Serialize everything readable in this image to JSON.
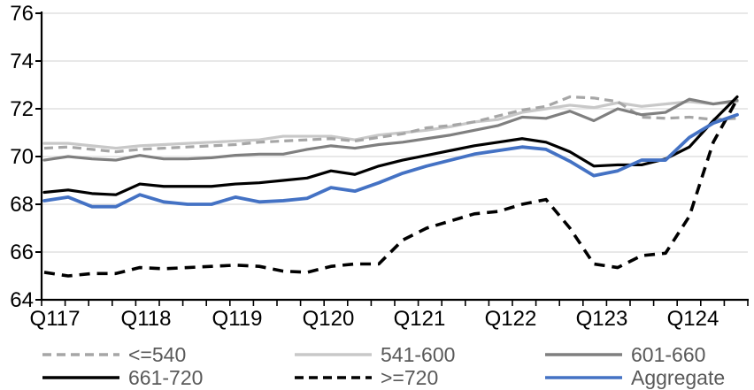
{
  "chart_data": {
    "type": "line",
    "title": "",
    "xlabel": "",
    "ylabel": "",
    "grid": true,
    "legend_position": "bottom",
    "background_color": "#FFFFFF",
    "gridline_color": "#D9D9D9",
    "axis_color": "#000000",
    "axis_label_color": "#000000",
    "legend_text_color": "#595959",
    "y_axis": {
      "min": 64,
      "max": 76,
      "step": 2,
      "tick_labels": [
        "64",
        "66",
        "68",
        "70",
        "72",
        "74",
        "76"
      ]
    },
    "x_axis": {
      "tick_labels": [
        "Q117",
        "Q118",
        "Q119",
        "Q120",
        "Q121",
        "Q122",
        "Q123",
        "Q124"
      ],
      "categories": [
        "Q117",
        "Q217",
        "Q317",
        "Q417",
        "Q118",
        "Q218",
        "Q318",
        "Q418",
        "Q119",
        "Q219",
        "Q319",
        "Q419",
        "Q120",
        "Q220",
        "Q320",
        "Q420",
        "Q121",
        "Q221",
        "Q321",
        "Q421",
        "Q122",
        "Q222",
        "Q322",
        "Q422",
        "Q123",
        "Q223",
        "Q323",
        "Q423",
        "Q124",
        "Q224"
      ]
    },
    "series": [
      {
        "key": "le-540",
        "name": "<=540",
        "color": "#A6A6A6",
        "dash": "dashed",
        "width": 3.2,
        "values": [
          70.35,
          70.4,
          70.3,
          70.2,
          70.3,
          70.35,
          70.4,
          70.45,
          70.5,
          70.6,
          70.65,
          70.7,
          70.75,
          70.65,
          70.8,
          70.95,
          71.2,
          71.3,
          71.45,
          71.7,
          71.95,
          72.1,
          72.5,
          72.45,
          72.3,
          71.65,
          71.6,
          71.65,
          71.55,
          71.6
        ]
      },
      {
        "key": "541-600",
        "name": "541-600",
        "color": "#C8C8C8",
        "dash": "solid",
        "width": 3.2,
        "values": [
          70.55,
          70.55,
          70.45,
          70.35,
          70.45,
          70.5,
          70.55,
          70.6,
          70.65,
          70.7,
          70.85,
          70.85,
          70.85,
          70.7,
          70.9,
          71.0,
          71.1,
          71.25,
          71.45,
          71.55,
          71.85,
          72.0,
          72.15,
          72.05,
          72.25,
          72.1,
          72.2,
          72.3,
          72.2,
          72.3
        ]
      },
      {
        "key": "601-660",
        "name": "601-660",
        "color": "#7F7F7F",
        "dash": "solid",
        "width": 3.2,
        "values": [
          69.85,
          70.0,
          69.9,
          69.85,
          70.05,
          69.9,
          69.9,
          69.95,
          70.05,
          70.1,
          70.1,
          70.3,
          70.45,
          70.35,
          70.5,
          70.6,
          70.75,
          70.9,
          71.1,
          71.3,
          71.65,
          71.6,
          71.9,
          71.5,
          72.0,
          71.75,
          71.85,
          72.4,
          72.2,
          72.35
        ]
      },
      {
        "key": "661-720",
        "name": "661-720",
        "color": "#000000",
        "dash": "solid",
        "width": 3.2,
        "values": [
          68.5,
          68.6,
          68.45,
          68.4,
          68.85,
          68.75,
          68.75,
          68.75,
          68.85,
          68.9,
          69.0,
          69.1,
          69.4,
          69.25,
          69.6,
          69.85,
          70.05,
          70.25,
          70.45,
          70.6,
          70.75,
          70.6,
          70.2,
          69.6,
          69.65,
          69.65,
          69.9,
          70.4,
          71.5,
          72.5
        ]
      },
      {
        "key": "ge-720",
        "name": ">=720",
        "color": "#000000",
        "dash": "dashed",
        "width": 3.6,
        "values": [
          65.15,
          65.0,
          65.1,
          65.1,
          65.35,
          65.3,
          65.35,
          65.4,
          65.45,
          65.4,
          65.2,
          65.15,
          65.4,
          65.5,
          65.5,
          66.5,
          67.0,
          67.3,
          67.6,
          67.7,
          68.0,
          68.2,
          67.0,
          65.5,
          65.35,
          65.85,
          65.95,
          67.5,
          70.6,
          72.4
        ]
      },
      {
        "key": "aggregate",
        "name": "Aggregate",
        "color": "#4472C4",
        "dash": "solid",
        "width": 3.8,
        "values": [
          68.15,
          68.3,
          67.9,
          67.9,
          68.4,
          68.1,
          68.0,
          68.0,
          68.3,
          68.1,
          68.15,
          68.25,
          68.7,
          68.55,
          68.9,
          69.3,
          69.6,
          69.85,
          70.1,
          70.25,
          70.4,
          70.3,
          69.8,
          69.2,
          69.4,
          69.85,
          69.85,
          70.8,
          71.4,
          71.75
        ]
      }
    ],
    "legend_rows": [
      [
        "le-540",
        "541-600",
        "601-660"
      ],
      [
        "661-720",
        "ge-720",
        "aggregate"
      ]
    ]
  }
}
